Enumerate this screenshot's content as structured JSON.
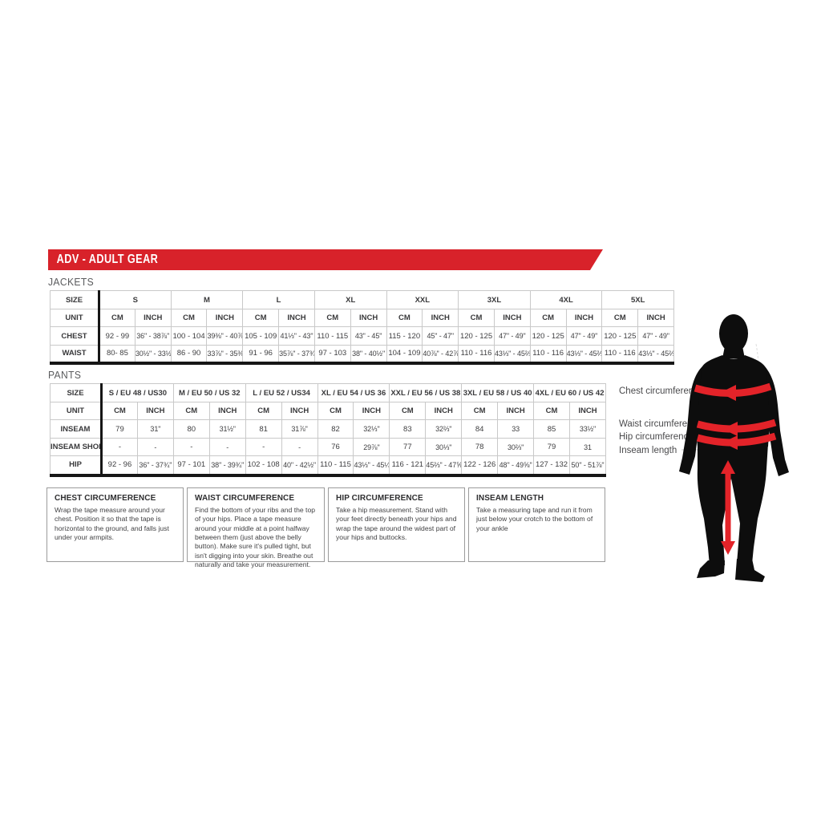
{
  "banner": {
    "title": "ADV - ADULT GEAR"
  },
  "colors": {
    "brand_red": "#d8222a",
    "band_red": "#e32329",
    "silhouette": "#0d0d0d"
  },
  "sections": {
    "jackets": "JACKETS",
    "pants": "PANTS"
  },
  "jackets_table": {
    "corner_label": "SIZE",
    "unit_label": "UNIT",
    "units": [
      "CM",
      "INCH"
    ],
    "sizes": [
      "S",
      "M",
      "L",
      "XL",
      "XXL",
      "3XL",
      "4XL",
      "5XL"
    ],
    "rows": [
      {
        "label": "CHEST",
        "cm": [
          "92 - 99",
          "100 - 104",
          "105 - 109",
          "110 - 115",
          "115 - 120",
          "120 - 125",
          "120 - 125",
          "120 - 125"
        ],
        "inch": [
          "36\" - 38⅞\"",
          "39⅜\" - 40⅞\"",
          "41⅓\" - 43\"",
          "43\" - 45\"",
          "45\" - 47\"",
          "47\" - 49\"",
          "47\" - 49\"",
          "47\" - 49\""
        ]
      },
      {
        "label": "WAIST",
        "cm": [
          "80- 85",
          "86 - 90",
          "91 - 96",
          "97 - 103",
          "104 - 109",
          "110 - 116",
          "110 - 116",
          "110 - 116"
        ],
        "inch": [
          "30½\" - 33½\"",
          "33⅞\" - 35⅜\"",
          "35⅞\" - 37¾\"",
          "38\" - 40½\"",
          "40⅞\" - 42⅞\"",
          "43⅓\" - 45⅔\"",
          "43⅓\" - 45⅔\"",
          "43⅓\" - 45⅔\""
        ]
      }
    ]
  },
  "pants_table": {
    "corner_label": "SIZE",
    "unit_label": "UNIT",
    "units": [
      "CM",
      "INCH"
    ],
    "sizes": [
      "S / EU 48 / US30",
      "M / EU 50 / US 32",
      "L / EU 52 / US34",
      "XL / EU 54 / US 36",
      "XXL / EU 56 / US 38",
      "3XL / EU 58 / US 40",
      "4XL / EU 60 / US 42"
    ],
    "rows": [
      {
        "label": "INSEAM",
        "cm": [
          "79",
          "80",
          "81",
          "82",
          "83",
          "84",
          "85"
        ],
        "inch": [
          "31\"",
          "31½\"",
          "31⅞\"",
          "32⅓\"",
          "32⅔\"",
          "33",
          "33½\""
        ]
      },
      {
        "label": "INSEAM SHORT",
        "cm": [
          "-",
          "-",
          "-",
          "76",
          "77",
          "78",
          "79"
        ],
        "inch": [
          "-",
          "-",
          "-",
          "29⅞\"",
          "30⅓\"",
          "30⅔\"",
          "31"
        ]
      },
      {
        "label": "HIP",
        "cm": [
          "92 - 96",
          "97 - 101",
          "102 - 108",
          "110 - 115",
          "116 - 121",
          "122 - 126",
          "127 - 132"
        ],
        "inch": [
          "36\" - 37¾\"",
          "38\" - 39¾\"",
          "40\" - 42½\"",
          "43⅓\" - 45¼\"",
          "45⅔\" - 47⅝\"",
          "48\" - 49⅝\"",
          "50\" - 51⅞\""
        ]
      }
    ]
  },
  "info_boxes": [
    {
      "title": "CHEST CIRCUMFERENCE",
      "body": "Wrap the tape measure around your chest. Position it so that the tape is horizontal to the ground, and falls just under your armpits."
    },
    {
      "title": "WAIST CIRCUMFERENCE",
      "body": "Find the bottom of your ribs and the top of your hips. Place a tape measure around your middle at a point halfway between them (just above the belly button). Make sure it's pulled tight, but isn't digging into your skin. Breathe out naturally and take your measurement."
    },
    {
      "title": "HIP CIRCUMFERENCE",
      "body": "Take a hip measurement. Stand with your feet directly beneath your hips and wrap the tape around the widest part of your hips and buttocks."
    },
    {
      "title": "INSEAM LENGTH",
      "body": "Take a measuring tape and run it from just below your crotch to the bottom of your ankle"
    }
  ],
  "figure": {
    "labels": {
      "chest": "Chest circumference",
      "waist": "Waist circumference",
      "hip": "Hip circumference",
      "inseam": "Inseam length"
    }
  }
}
